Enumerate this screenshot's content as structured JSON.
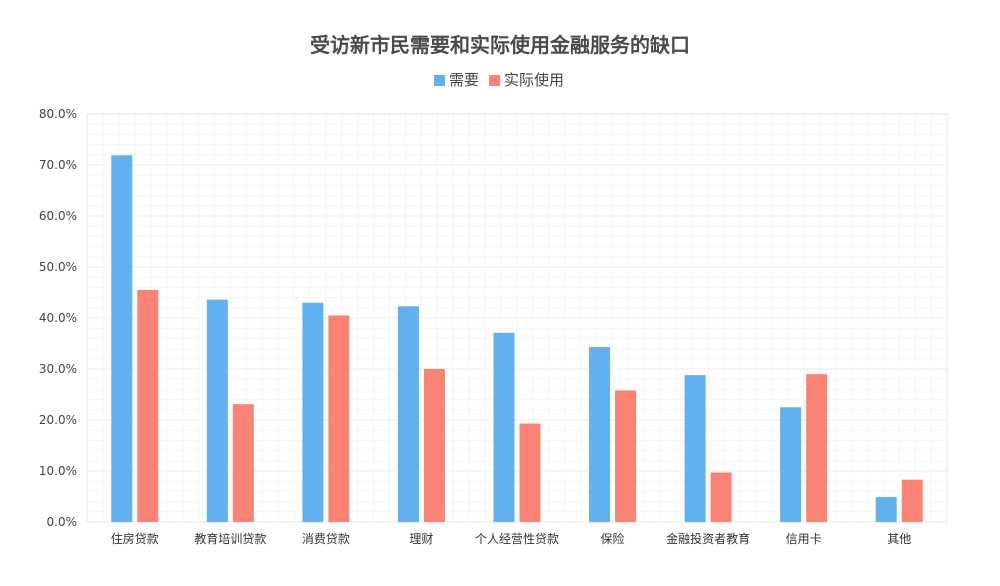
{
  "chart_data": {
    "type": "bar",
    "title": "受访新市民需要和实际使用金融服务的缺口",
    "categories": [
      "住房贷款",
      "教育培训贷款",
      "消费贷款",
      "理财",
      "个人经营性贷款",
      "保险",
      "金融投资者教育",
      "信用卡",
      "其他"
    ],
    "series": [
      {
        "name": "需要",
        "color": "#62b0ee",
        "values": [
          71.9,
          43.6,
          43.0,
          42.3,
          37.1,
          34.3,
          28.8,
          22.5,
          4.9
        ]
      },
      {
        "name": "实际使用",
        "color": "#f98475",
        "values": [
          45.5,
          23.1,
          40.5,
          30.0,
          19.3,
          25.8,
          9.7,
          29.0,
          8.3
        ]
      }
    ],
    "ylim": [
      0,
      80
    ],
    "yticks": [
      "0.0%",
      "10.0%",
      "20.0%",
      "30.0%",
      "40.0%",
      "50.0%",
      "60.0%",
      "70.0%",
      "80.0%"
    ],
    "xlabel": "",
    "ylabel": "",
    "legend": "top-center",
    "grid": true
  }
}
